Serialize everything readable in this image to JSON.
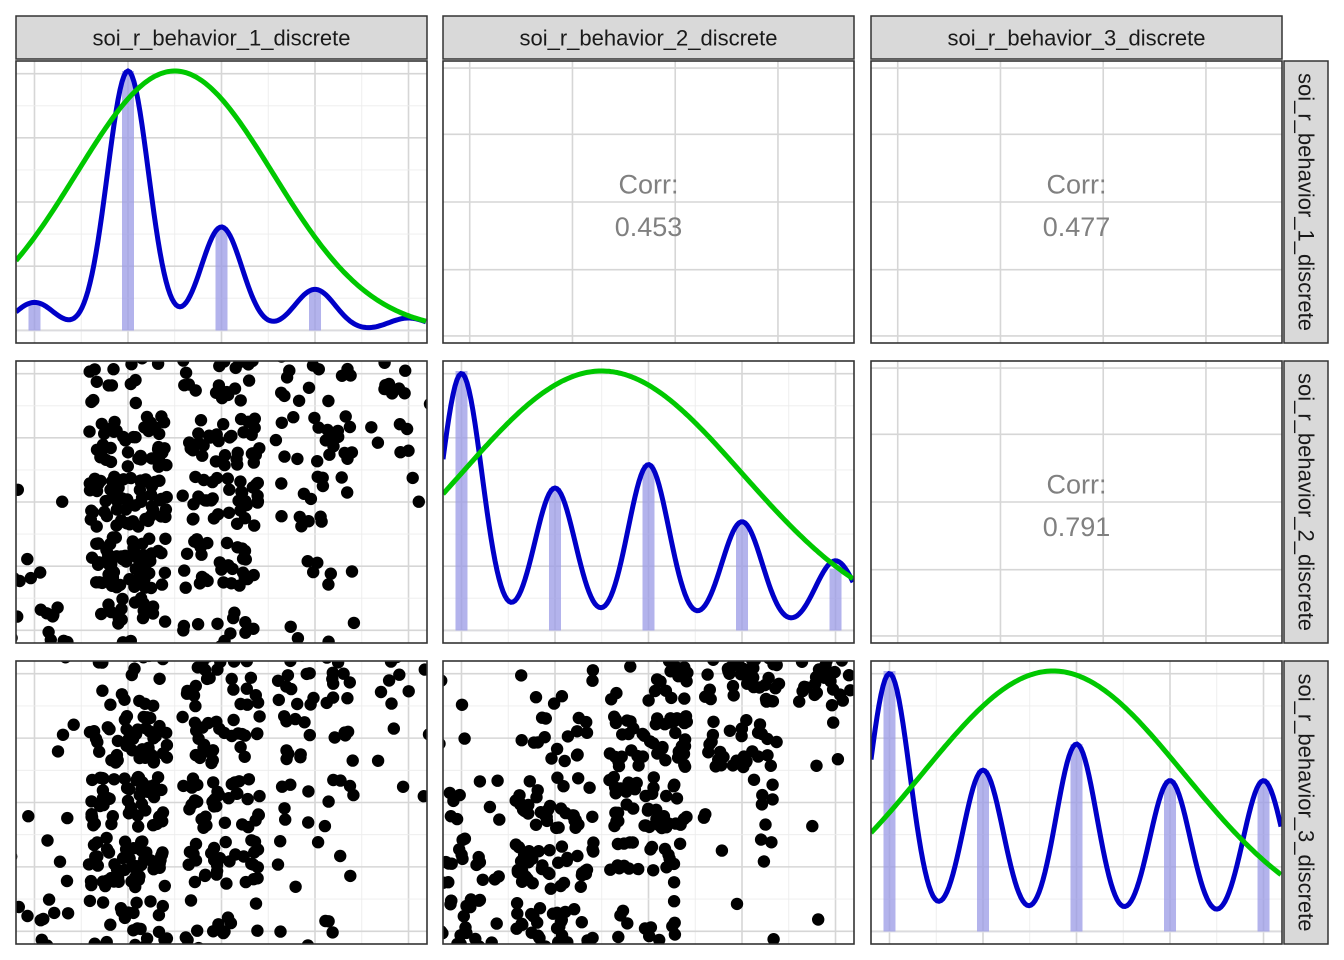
{
  "chart_data": {
    "type": "pairs",
    "variables": [
      "soi_r_behavior_1_discrete",
      "soi_r_behavior_2_discrete",
      "soi_r_behavior_3_discrete"
    ],
    "levels": [
      1,
      2,
      3,
      4,
      5
    ],
    "correlations": [
      {
        "row": 1,
        "col": 2,
        "label": "Corr:",
        "value": "0.453"
      },
      {
        "row": 1,
        "col": 3,
        "label": "Corr:",
        "value": "0.477"
      },
      {
        "row": 2,
        "col": 3,
        "label": "Corr:",
        "value": "0.791"
      }
    ],
    "diagonal": [
      {
        "variable": "soi_r_behavior_1_discrete",
        "bar_heights": [
          0.11,
          1.0,
          0.4,
          0.16,
          0.0
        ],
        "density_peaks": [
          0.11,
          1.0,
          0.4,
          0.16,
          0.05
        ],
        "normal_mean": 2.5,
        "normal_sd": 1.05,
        "normal_peak": 1.0
      },
      {
        "variable": "soi_r_behavior_2_discrete",
        "bar_heights": [
          1.0,
          0.55,
          0.64,
          0.42,
          0.24
        ],
        "density_peaks": [
          0.99,
          0.55,
          0.64,
          0.42,
          0.27
        ],
        "normal_mean": 2.5,
        "normal_sd": 1.5,
        "normal_peak": 1.0
      },
      {
        "variable": "soi_r_behavior_3_discrete",
        "bar_heights": [
          1.0,
          0.62,
          0.72,
          0.58,
          0.58
        ],
        "density_peaks": [
          0.99,
          0.62,
          0.72,
          0.58,
          0.58
        ],
        "normal_mean": 2.75,
        "normal_sd": 1.4,
        "normal_peak": 1.0
      }
    ],
    "scatter_counts": {
      "r2c1": [
        [
          14,
          20,
          12,
          4,
          0
        ],
        [
          8,
          60,
          30,
          6,
          0
        ],
        [
          3,
          55,
          35,
          14,
          2
        ],
        [
          0,
          40,
          32,
          20,
          6
        ],
        [
          0,
          14,
          22,
          14,
          16
        ]
      ],
      "r3c1": [
        [
          14,
          24,
          14,
          5,
          0
        ],
        [
          6,
          50,
          30,
          6,
          0
        ],
        [
          5,
          52,
          34,
          12,
          2
        ],
        [
          3,
          48,
          28,
          15,
          3
        ],
        [
          2,
          16,
          24,
          24,
          14
        ]
      ],
      "r3c2": [
        [
          24,
          30,
          12,
          2,
          2
        ],
        [
          20,
          40,
          20,
          4,
          0
        ],
        [
          12,
          34,
          40,
          8,
          2
        ],
        [
          4,
          16,
          44,
          30,
          4
        ],
        [
          2,
          6,
          22,
          36,
          34
        ]
      ]
    },
    "colors": {
      "density": "#0000c8",
      "normal": "#00c800",
      "bars": "#9999e6",
      "points": "#000000",
      "corr": "#808080"
    }
  }
}
